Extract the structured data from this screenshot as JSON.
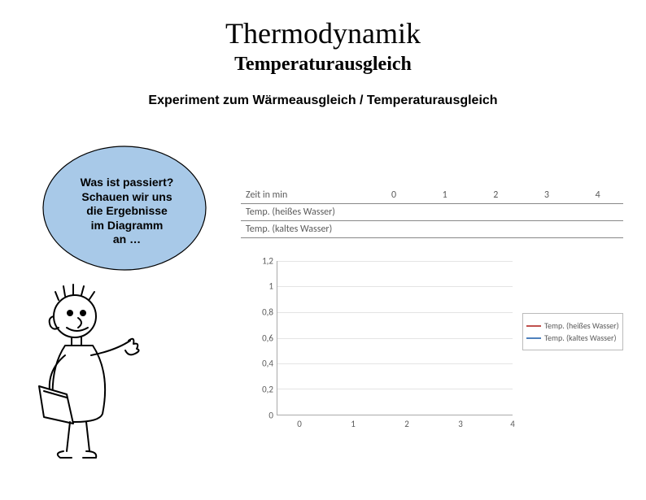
{
  "title": "Thermodynamik",
  "subtitle": "Temperaturausgleich",
  "experiment_line": "Experiment zum Wärmeausgleich / Temperaturausgleich",
  "bubble": {
    "text": "Was ist passiert?\nSchauen wir uns\ndie Ergebnisse\nim Diagramm\nan …",
    "fill": "#a8c9e8",
    "stroke": "#000000"
  },
  "table": {
    "row_labels": [
      "Zeit in min",
      "Temp. (heißes Wasser)",
      "Temp. (kaltes Wasser)"
    ],
    "columns": [
      "0",
      "1",
      "2",
      "3",
      "4"
    ]
  },
  "chart": {
    "type": "line",
    "y_ticks": [
      "0",
      "0,2",
      "0,4",
      "0,6",
      "0,8",
      "1",
      "1,2"
    ],
    "x_ticks": [
      "0",
      "1",
      "2",
      "3",
      "4"
    ],
    "ylim": [
      0,
      1.2
    ],
    "xlim": [
      0,
      4
    ],
    "grid_color": "#e4e4e4",
    "axis_color": "#aaaaaa",
    "label_color": "#5a5a5a",
    "label_fontsize": 11,
    "legend": {
      "items": [
        {
          "label": "Temp. (heißes Wasser)",
          "color": "#c0504d"
        },
        {
          "label": "Temp. (kaltes Wasser)",
          "color": "#4f81bd"
        }
      ],
      "border_color": "#bbbbbb"
    }
  },
  "character": {
    "stroke": "#000000",
    "fill": "#ffffff"
  }
}
